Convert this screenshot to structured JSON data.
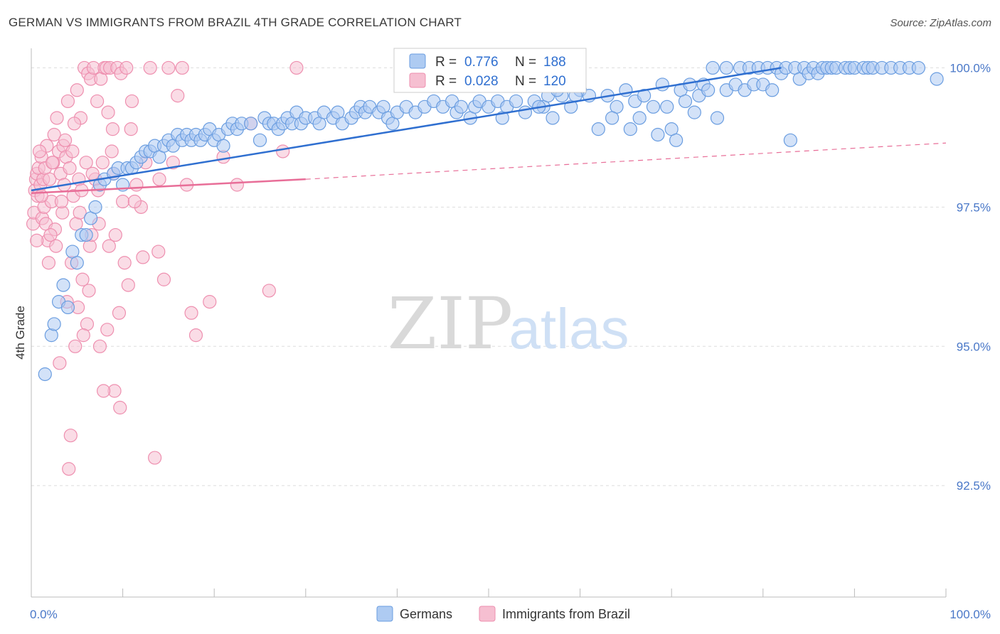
{
  "header": {
    "title": "GERMAN VS IMMIGRANTS FROM BRAZIL 4TH GRADE CORRELATION CHART",
    "source": "Source: ZipAtlas.com"
  },
  "watermark": {
    "zip": "ZIP",
    "atlas": "atlas"
  },
  "colors": {
    "germans": "#6a9de0",
    "germans_fill": "#aecbf2",
    "germans_line": "#2f6fd0",
    "brazil": "#ee8faf",
    "brazil_fill": "#f6bfd1",
    "brazil_line": "#e86e98",
    "grid": "#dddddd",
    "tick_text": "#4a78c8"
  },
  "chart_data": {
    "type": "scatter",
    "title": "GERMAN VS IMMIGRANTS FROM BRAZIL 4TH GRADE CORRELATION CHART",
    "xlabel": "",
    "ylabel": "4th Grade",
    "xlim": [
      0,
      100
    ],
    "ylim": [
      90.5,
      100.35
    ],
    "x_tick_labels": [
      "0.0%",
      "100.0%"
    ],
    "y_ticks": [
      92.5,
      95.0,
      97.5,
      100.0
    ],
    "y_tick_labels": [
      "92.5%",
      "95.0%",
      "97.5%",
      "100.0%"
    ],
    "grid": true,
    "legend_position": "top-center",
    "legend": [
      {
        "name": "Germans",
        "R_label": "R =",
        "R": "0.776",
        "N_label": "N =",
        "N": "188"
      },
      {
        "name": "Immigrants from Brazil",
        "R_label": "R =",
        "R": "0.028",
        "N_label": "N =",
        "N": "120"
      }
    ],
    "series": [
      {
        "name": "Germans",
        "trend": {
          "x": [
            0,
            82
          ],
          "y": [
            97.8,
            100.0
          ]
        },
        "points": [
          [
            1.5,
            94.5
          ],
          [
            2.2,
            95.2
          ],
          [
            2.5,
            95.4
          ],
          [
            3.0,
            95.8
          ],
          [
            3.5,
            96.1
          ],
          [
            4.0,
            95.7
          ],
          [
            4.5,
            96.7
          ],
          [
            5.0,
            96.5
          ],
          [
            5.5,
            97.0
          ],
          [
            6.0,
            97.0
          ],
          [
            6.5,
            97.3
          ],
          [
            7.0,
            97.5
          ],
          [
            7.5,
            97.9
          ],
          [
            8.0,
            98.0
          ],
          [
            9.0,
            98.1
          ],
          [
            9.5,
            98.2
          ],
          [
            10.0,
            97.9
          ],
          [
            10.5,
            98.2
          ],
          [
            11.0,
            98.2
          ],
          [
            11.5,
            98.3
          ],
          [
            12.0,
            98.4
          ],
          [
            12.5,
            98.5
          ],
          [
            13.0,
            98.5
          ],
          [
            13.5,
            98.6
          ],
          [
            14.0,
            98.4
          ],
          [
            14.5,
            98.6
          ],
          [
            15.0,
            98.7
          ],
          [
            15.5,
            98.6
          ],
          [
            16.0,
            98.8
          ],
          [
            16.5,
            98.7
          ],
          [
            17.0,
            98.8
          ],
          [
            17.5,
            98.7
          ],
          [
            18.0,
            98.8
          ],
          [
            18.5,
            98.7
          ],
          [
            19.0,
            98.8
          ],
          [
            19.5,
            98.9
          ],
          [
            20.0,
            98.7
          ],
          [
            20.5,
            98.8
          ],
          [
            21.0,
            98.6
          ],
          [
            21.5,
            98.9
          ],
          [
            22.0,
            99.0
          ],
          [
            22.5,
            98.9
          ],
          [
            23.0,
            99.0
          ],
          [
            24.0,
            99.0
          ],
          [
            25.0,
            98.7
          ],
          [
            25.5,
            99.1
          ],
          [
            26.0,
            99.0
          ],
          [
            26.5,
            99.0
          ],
          [
            27.0,
            98.9
          ],
          [
            27.5,
            99.0
          ],
          [
            28.0,
            99.1
          ],
          [
            28.5,
            99.0
          ],
          [
            29.0,
            99.2
          ],
          [
            29.5,
            99.0
          ],
          [
            30.0,
            99.1
          ],
          [
            31.0,
            99.1
          ],
          [
            31.5,
            99.0
          ],
          [
            32.0,
            99.2
          ],
          [
            33.0,
            99.1
          ],
          [
            33.5,
            99.2
          ],
          [
            34.0,
            99.0
          ],
          [
            35.0,
            99.1
          ],
          [
            35.5,
            99.2
          ],
          [
            36.0,
            99.3
          ],
          [
            36.5,
            99.2
          ],
          [
            37.0,
            99.3
          ],
          [
            38.0,
            99.2
          ],
          [
            38.5,
            99.3
          ],
          [
            39.0,
            99.1
          ],
          [
            39.5,
            99.0
          ],
          [
            40.0,
            99.2
          ],
          [
            41.0,
            99.3
          ],
          [
            42.0,
            99.2
          ],
          [
            43.0,
            99.3
          ],
          [
            44.0,
            99.4
          ],
          [
            45.0,
            99.3
          ],
          [
            46.0,
            99.4
          ],
          [
            46.5,
            99.2
          ],
          [
            47.0,
            99.3
          ],
          [
            48.0,
            99.1
          ],
          [
            48.5,
            99.3
          ],
          [
            49.0,
            99.4
          ],
          [
            50.0,
            99.3
          ],
          [
            51.0,
            99.4
          ],
          [
            51.5,
            99.1
          ],
          [
            52.0,
            99.3
          ],
          [
            53.0,
            99.4
          ],
          [
            54.0,
            99.2
          ],
          [
            55.0,
            99.4
          ],
          [
            56.0,
            99.3
          ],
          [
            56.5,
            99.5
          ],
          [
            57.0,
            99.1
          ],
          [
            58.0,
            99.5
          ],
          [
            59.0,
            99.3
          ],
          [
            60.0,
            99.6
          ],
          [
            61.0,
            99.5
          ],
          [
            62.0,
            98.9
          ],
          [
            63.0,
            99.5
          ],
          [
            64.0,
            99.3
          ],
          [
            65.0,
            99.6
          ],
          [
            66.0,
            99.4
          ],
          [
            66.5,
            99.1
          ],
          [
            67.0,
            99.5
          ],
          [
            68.0,
            99.3
          ],
          [
            68.5,
            98.8
          ],
          [
            69.0,
            99.7
          ],
          [
            69.5,
            99.3
          ],
          [
            70.0,
            98.9
          ],
          [
            71.0,
            99.6
          ],
          [
            71.5,
            99.4
          ],
          [
            72.0,
            99.7
          ],
          [
            73.0,
            99.5
          ],
          [
            73.5,
            99.7
          ],
          [
            74.0,
            99.6
          ],
          [
            75.0,
            99.1
          ],
          [
            76.0,
            99.6
          ],
          [
            77.0,
            99.7
          ],
          [
            77.5,
            100.0
          ],
          [
            78.0,
            99.6
          ],
          [
            78.5,
            100.0
          ],
          [
            79.0,
            99.7
          ],
          [
            79.5,
            100.0
          ],
          [
            80.0,
            99.7
          ],
          [
            80.5,
            100.0
          ],
          [
            81.0,
            99.6
          ],
          [
            81.5,
            100.0
          ],
          [
            82.0,
            99.9
          ],
          [
            82.5,
            100.0
          ],
          [
            83.0,
            98.7
          ],
          [
            83.5,
            100.0
          ],
          [
            84.0,
            99.8
          ],
          [
            84.5,
            100.0
          ],
          [
            85.0,
            99.9
          ],
          [
            85.5,
            100.0
          ],
          [
            86.0,
            99.9
          ],
          [
            86.5,
            100.0
          ],
          [
            87.0,
            100.0
          ],
          [
            87.5,
            100.0
          ],
          [
            88.0,
            100.0
          ],
          [
            89.0,
            100.0
          ],
          [
            89.5,
            100.0
          ],
          [
            90.0,
            100.0
          ],
          [
            91.0,
            100.0
          ],
          [
            91.5,
            100.0
          ],
          [
            92.0,
            100.0
          ],
          [
            93.0,
            100.0
          ],
          [
            94.0,
            100.0
          ],
          [
            95.0,
            100.0
          ],
          [
            96.0,
            100.0
          ],
          [
            97.0,
            100.0
          ],
          [
            99.0,
            99.8
          ],
          [
            76.0,
            100.0
          ],
          [
            74.5,
            100.0
          ],
          [
            72.5,
            99.2
          ],
          [
            70.5,
            98.7
          ],
          [
            65.5,
            98.9
          ],
          [
            63.5,
            99.1
          ],
          [
            59.5,
            99.5
          ],
          [
            57.5,
            99.6
          ],
          [
            55.5,
            99.3
          ]
        ]
      },
      {
        "name": "Immigrants from Brazil",
        "trend": {
          "x": [
            0,
            30
          ],
          "y": [
            97.75,
            98.0
          ],
          "dashed_to": [
            100,
            98.65
          ]
        },
        "points": [
          [
            0.2,
            97.2
          ],
          [
            0.3,
            97.4
          ],
          [
            0.4,
            97.8
          ],
          [
            0.5,
            98.0
          ],
          [
            0.6,
            98.1
          ],
          [
            0.7,
            97.7
          ],
          [
            0.8,
            98.2
          ],
          [
            1.0,
            97.9
          ],
          [
            1.1,
            98.4
          ],
          [
            1.2,
            97.3
          ],
          [
            1.3,
            98.0
          ],
          [
            1.4,
            97.5
          ],
          [
            1.5,
            98.2
          ],
          [
            1.6,
            97.2
          ],
          [
            1.8,
            96.9
          ],
          [
            2.0,
            98.0
          ],
          [
            2.2,
            97.6
          ],
          [
            2.4,
            98.3
          ],
          [
            2.5,
            98.8
          ],
          [
            2.6,
            97.1
          ],
          [
            2.8,
            99.1
          ],
          [
            3.0,
            98.5
          ],
          [
            3.2,
            98.1
          ],
          [
            3.4,
            97.4
          ],
          [
            3.5,
            98.6
          ],
          [
            3.6,
            97.9
          ],
          [
            3.8,
            98.4
          ],
          [
            4.0,
            99.4
          ],
          [
            4.2,
            98.2
          ],
          [
            4.4,
            96.5
          ],
          [
            4.5,
            98.5
          ],
          [
            4.6,
            97.7
          ],
          [
            4.8,
            95.0
          ],
          [
            5.0,
            99.6
          ],
          [
            5.2,
            98.0
          ],
          [
            5.4,
            99.1
          ],
          [
            5.5,
            97.8
          ],
          [
            5.6,
            96.2
          ],
          [
            5.8,
            100.0
          ],
          [
            6.0,
            98.3
          ],
          [
            6.2,
            99.9
          ],
          [
            6.4,
            96.8
          ],
          [
            6.5,
            99.8
          ],
          [
            6.6,
            97.0
          ],
          [
            6.8,
            100.0
          ],
          [
            7.0,
            98.0
          ],
          [
            7.2,
            99.4
          ],
          [
            7.4,
            97.2
          ],
          [
            7.5,
            95.0
          ],
          [
            7.6,
            99.8
          ],
          [
            7.8,
            98.3
          ],
          [
            8.0,
            100.0
          ],
          [
            8.2,
            100.0
          ],
          [
            8.4,
            99.2
          ],
          [
            8.5,
            96.8
          ],
          [
            8.6,
            100.0
          ],
          [
            8.8,
            98.5
          ],
          [
            9.0,
            98.1
          ],
          [
            9.2,
            97.0
          ],
          [
            9.4,
            100.0
          ],
          [
            9.6,
            95.6
          ],
          [
            9.8,
            99.9
          ],
          [
            10.0,
            97.6
          ],
          [
            10.2,
            96.5
          ],
          [
            10.4,
            100.0
          ],
          [
            10.6,
            96.1
          ],
          [
            11.0,
            99.4
          ],
          [
            11.5,
            97.9
          ],
          [
            12.0,
            97.5
          ],
          [
            12.5,
            98.3
          ],
          [
            13.0,
            100.0
          ],
          [
            13.5,
            93.0
          ],
          [
            14.0,
            98.0
          ],
          [
            14.5,
            96.2
          ],
          [
            15.0,
            100.0
          ],
          [
            15.5,
            98.3
          ],
          [
            16.0,
            99.5
          ],
          [
            16.5,
            100.0
          ],
          [
            17.0,
            97.9
          ],
          [
            17.5,
            95.6
          ],
          [
            18.0,
            95.2
          ],
          [
            19.5,
            95.8
          ],
          [
            21.0,
            98.4
          ],
          [
            22.5,
            97.9
          ],
          [
            24.0,
            99.0
          ],
          [
            26.0,
            96.0
          ],
          [
            27.5,
            98.5
          ],
          [
            29.0,
            100.0
          ],
          [
            9.1,
            94.2
          ],
          [
            9.7,
            93.9
          ],
          [
            7.9,
            94.2
          ],
          [
            4.3,
            93.4
          ],
          [
            4.1,
            92.8
          ],
          [
            3.1,
            94.7
          ],
          [
            5.1,
            95.7
          ],
          [
            6.1,
            95.4
          ],
          [
            8.3,
            95.3
          ],
          [
            12.2,
            96.6
          ],
          [
            13.9,
            96.7
          ],
          [
            4.9,
            97.2
          ],
          [
            2.1,
            97.0
          ],
          [
            1.7,
            98.6
          ],
          [
            0.9,
            98.5
          ],
          [
            3.3,
            97.6
          ],
          [
            5.3,
            97.4
          ],
          [
            6.7,
            98.1
          ],
          [
            7.3,
            97.8
          ],
          [
            8.9,
            98.9
          ],
          [
            11.3,
            97.6
          ],
          [
            10.9,
            98.9
          ],
          [
            1.9,
            96.5
          ],
          [
            2.7,
            96.8
          ],
          [
            3.9,
            95.8
          ],
          [
            6.3,
            96.0
          ],
          [
            5.7,
            95.2
          ],
          [
            4.7,
            99.0
          ],
          [
            3.7,
            98.7
          ],
          [
            2.3,
            98.3
          ],
          [
            1.1,
            97.7
          ],
          [
            0.6,
            96.9
          ]
        ]
      }
    ]
  }
}
